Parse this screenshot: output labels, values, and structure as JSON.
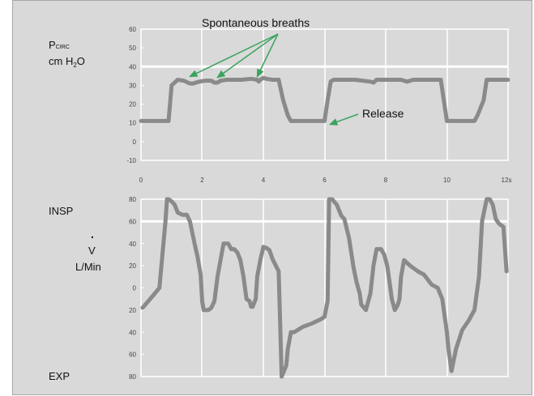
{
  "labels": {
    "annotation_breaths": "Spontaneous breaths",
    "annotation_release": "Release",
    "pcirc_main": "P",
    "pcirc_sub": "CIRC",
    "pcirc_units_main": "cm H",
    "pcirc_units_sub": "2",
    "pcirc_units_end": "O",
    "flow_top": "INSP",
    "flow_dot": ".",
    "flow_symbol": "V",
    "flow_units": "L/Min",
    "flow_bottom": "EXP"
  },
  "chart_data": [
    {
      "type": "line",
      "title": "",
      "ylabel": "P CIRC cm H2O",
      "xlim": [
        0,
        12
      ],
      "ylim": [
        -10,
        60
      ],
      "x_ticks": [
        "0",
        "2",
        "4",
        "6",
        "8",
        "10",
        "12s"
      ],
      "y_ticks": [
        "60",
        "50",
        "40",
        "30",
        "20",
        "10",
        "0",
        "-10"
      ],
      "reference_line": 40,
      "colors": {
        "series": "#8a8a8a",
        "grid": "#ffffff",
        "reference": "#ffffff",
        "annotation": "#3aa35e"
      },
      "series": [
        {
          "x": [
            0.0,
            0.7,
            0.9,
            1.0,
            1.2,
            1.4,
            1.6,
            1.7,
            1.9,
            2.1,
            2.3,
            2.4,
            2.5,
            2.6,
            2.8,
            3.0,
            3.3,
            3.6,
            3.8,
            3.85,
            3.9,
            4.0,
            4.1,
            4.3,
            4.5,
            4.65,
            4.8,
            4.9,
            5.2,
            5.6,
            6.0,
            6.1,
            6.2,
            6.3,
            6.5,
            7.0,
            7.5,
            7.6,
            7.7,
            8.0,
            8.5,
            8.7,
            8.9,
            9.5,
            9.8,
            9.9,
            10.0,
            10.5,
            10.9,
            11.0,
            11.2,
            11.3,
            11.5,
            11.8,
            12.0
          ],
          "y": [
            11,
            11,
            11,
            30,
            33,
            32.5,
            31,
            31,
            32,
            32.5,
            32.5,
            31.5,
            31.5,
            32.5,
            33,
            33,
            33,
            33.5,
            33,
            32,
            33,
            34,
            33.5,
            33,
            33,
            22,
            14,
            11,
            11,
            11,
            11,
            22,
            32,
            33,
            33,
            33,
            32,
            31.5,
            33,
            33,
            33,
            32,
            33,
            33,
            33,
            22,
            11,
            11,
            11,
            14,
            22,
            33,
            33,
            33,
            33
          ]
        }
      ],
      "annotations": [
        {
          "text": "Spontaneous breaths",
          "arrows_to": [
            [
              1.6,
              33
            ],
            [
              2.5,
              32.5
            ],
            [
              3.8,
              33
            ]
          ]
        },
        {
          "text": "Release",
          "arrow_to": [
            6.1,
            10.5
          ]
        }
      ]
    },
    {
      "type": "line",
      "title": "",
      "ylabel": "V L/Min",
      "xlim": [
        0,
        12
      ],
      "ylim": [
        -80,
        80
      ],
      "y_ticks": [
        "80",
        "60",
        "40",
        "20",
        "0",
        "20",
        "40",
        "60",
        "80"
      ],
      "reference_line": 60,
      "colors": {
        "series": "#8a8a8a",
        "grid": "#ffffff",
        "reference": "#ffffff"
      },
      "series": [
        {
          "x": [
            0.05,
            0.3,
            0.6,
            0.8,
            0.85,
            0.9,
            1.0,
            1.1,
            1.2,
            1.35,
            1.5,
            1.6,
            1.75,
            1.85,
            1.95,
            2.0,
            2.05,
            2.2,
            2.3,
            2.4,
            2.5,
            2.6,
            2.7,
            2.85,
            2.95,
            3.05,
            3.15,
            3.25,
            3.35,
            3.45,
            3.55,
            3.6,
            3.65,
            3.75,
            3.8,
            3.9,
            4.0,
            4.1,
            4.2,
            4.3,
            4.5,
            4.6,
            4.75,
            4.8,
            4.9,
            5.0,
            5.3,
            5.6,
            5.9,
            6.0,
            6.1,
            6.15,
            6.25,
            6.4,
            6.55,
            6.65,
            6.8,
            6.95,
            7.05,
            7.15,
            7.2,
            7.35,
            7.4,
            7.5,
            7.6,
            7.7,
            7.85,
            7.95,
            8.05,
            8.15,
            8.2,
            8.3,
            8.4,
            8.45,
            8.5,
            8.6,
            8.8,
            9.05,
            9.25,
            9.5,
            9.7,
            9.85,
            10.0,
            10.05,
            10.15,
            10.3,
            10.5,
            10.7,
            10.9,
            11.05,
            11.1,
            11.15,
            11.3,
            11.4,
            11.5,
            11.6,
            11.7,
            11.85,
            11.95
          ],
          "y": [
            -18,
            -10,
            0,
            60,
            80,
            80,
            78,
            75,
            68,
            66,
            66,
            60,
            40,
            28,
            12,
            -12,
            -20,
            -20,
            -18,
            -12,
            10,
            25,
            40,
            40,
            35,
            35,
            32,
            25,
            10,
            -10,
            -12,
            -17,
            -17,
            -10,
            10,
            25,
            37,
            36,
            34,
            26,
            15,
            -80,
            -70,
            -55,
            -40,
            -40,
            -35,
            -32,
            -28,
            -26,
            -12,
            80,
            80,
            75,
            65,
            62,
            45,
            18,
            5,
            -5,
            -15,
            -20,
            -15,
            -5,
            20,
            35,
            35,
            30,
            20,
            0,
            -10,
            -20,
            -15,
            -10,
            10,
            25,
            20,
            15,
            12,
            3,
            0,
            -10,
            -40,
            -55,
            -75,
            -55,
            -38,
            -30,
            -20,
            10,
            35,
            60,
            80,
            80,
            75,
            62,
            58,
            55,
            15
          ]
        }
      ]
    }
  ]
}
